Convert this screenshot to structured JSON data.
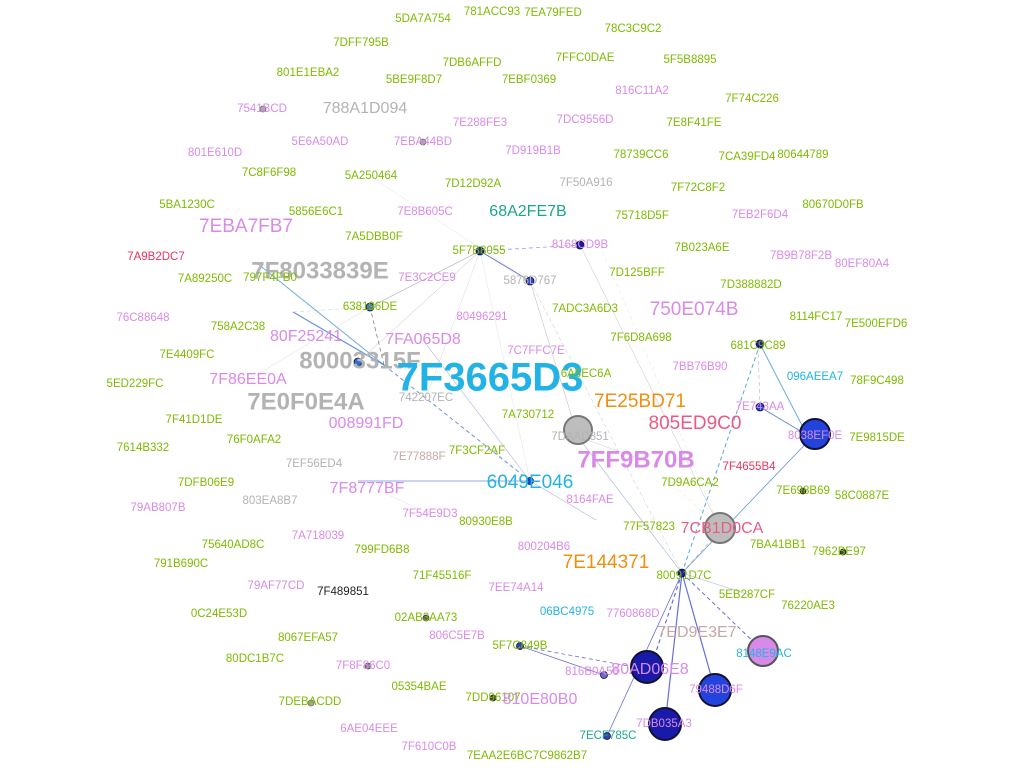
{
  "colors": {
    "green": "#7fba00",
    "lavender": "#d98ae8",
    "grey": "#b3b3b3",
    "cyan": "#22b3e6",
    "orange": "#f28e0f",
    "pink": "#ea5b84",
    "teal": "#1aa889",
    "red": "#e8335c",
    "rose": "#c9a7a7",
    "black": "#222222",
    "navy": "#1a1aa8",
    "blue": "#2244dd"
  },
  "labels": [
    "5DA7A754",
    "781ACC93",
    "7EA79FED",
    "7DFF795B",
    "78C3C9C2",
    "7DB6AFFD",
    "7FFC0DAE",
    "801E1EBA2",
    "5BE9F8D7",
    "7EBF0369",
    "5F5B8895",
    "7F74C226",
    "816C11A2",
    "7541BCD",
    "788A1D094",
    "7E288FE3",
    "7DC9556D",
    "7E8F41FE",
    "801E610D",
    "5E6A50AD",
    "7EBA44BD",
    "7D919B1B",
    "78739CC6",
    "7CA39FD4",
    "80644789",
    "7C8F6F98",
    "5A250464",
    "7D12D92A",
    "7F50A916",
    "7F72C8F2",
    "5BA1230C",
    "5856E6C1",
    "7EB2F6D4",
    "80670D0FB",
    "7EBA7FB7",
    "7A5DBB0F",
    "7E8B605C",
    "68A2FE7B",
    "75718D5F",
    "7B023A6E",
    "7B9B78F2B",
    "80EF80A4",
    "7A9B2DC7",
    "7F8033839E",
    "5F7B8055",
    "8168CD9B",
    "7E3C2CE9",
    "5876D767",
    "7D125BFF",
    "7D388882D",
    "7A89250C",
    "797F4FB0",
    "638196DE",
    "7ADC3A6D3",
    "750E074B",
    "8114FC17",
    "7E500EFD6",
    "76C88648",
    "758A2C38",
    "80496291",
    "7FA065D8",
    "7F6D8A698",
    "681C9C89",
    "80F25241",
    "80003315F",
    "7C7FFC7E",
    "7E4409FC",
    "7BB76B90",
    "7F86EE0A",
    "7F3665D3",
    "096AEEA7",
    "78F9C498",
    "5ED229FC",
    "742207EC",
    "6A5EC6A",
    "7E0F0E4A",
    "7E25BD71",
    "7E743AA",
    "7F41D1DE",
    "008991FD",
    "7A730712",
    "7DAAD851",
    "805ED9C0",
    "8038EF0E",
    "7E9815DE",
    "7614B332",
    "76F0AFA2",
    "7EF56ED4",
    "7E77888F",
    "7F3CF2AF",
    "7FF9B70B",
    "7F4655B4",
    "7DFB06E9",
    "6049E046",
    "7D9A6CA2",
    "7E698B69",
    "58C0887E",
    "803EA8B7",
    "7F8777BF",
    "8164FAE",
    "79AB807B",
    "7F54E9D3",
    "80930E8B",
    "7CB1D0CA",
    "77F57823",
    "7A718039",
    "7BA41BB1",
    "7962BE97",
    "75640AD8C",
    "799FD6B8",
    "800204B6",
    "7E144371",
    "791B690C",
    "80091D7C",
    "71F45516F",
    "5EB287CF",
    "76220AE3",
    "79AF77CD",
    "7F489851",
    "7EE74A14",
    "0C24E53D",
    "06BC4975",
    "7760868D",
    "02AB3AA73",
    "8067EFA57",
    "806C5E7B",
    "7ED9E3E7",
    "80DC1B7C",
    "8148E9AC",
    "5F7C849B",
    "816B0A56",
    "80AD06E8",
    "7F8F86C0",
    "05354BAE",
    "79488D6F",
    "7DD96107",
    "810E80B0",
    "7DEBACDD",
    "6AE04EEE",
    "7DB035A3",
    "7F610C0B",
    "7EAA2E6BC7C9862B7",
    "7ECF785C"
  ],
  "highlighted": [
    "7F86EE0A",
    "7FF9B70B",
    "6049E046",
    "7E25BD71",
    "805ED9C0",
    "7CB1D0CA",
    "7E144371"
  ]
}
